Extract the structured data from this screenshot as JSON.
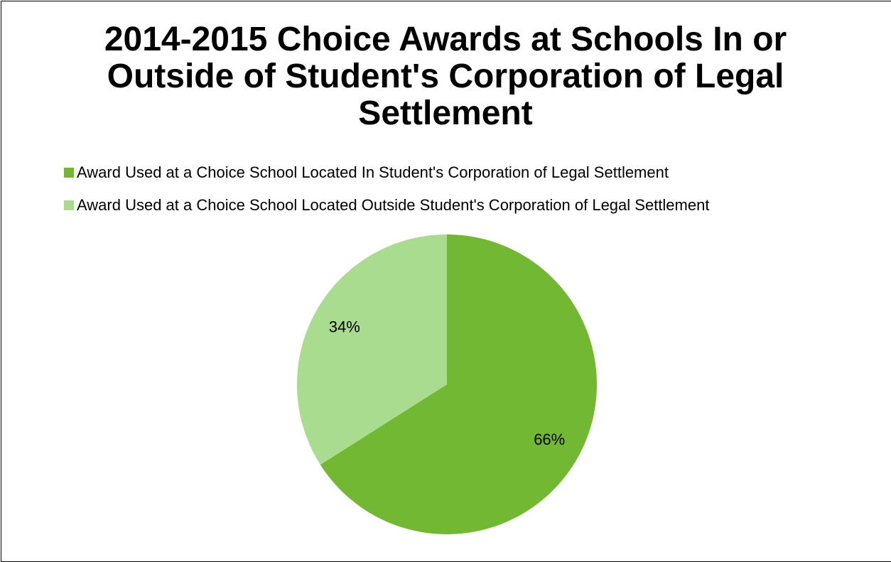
{
  "chart_data": {
    "type": "pie",
    "title": "2014-2015 Choice Awards at Schools In or Outside of Student's Corporation of Legal Settlement",
    "title_lines": [
      "2014-2015 Choice Awards at Schools In or",
      "Outside of Student's Corporation of Legal",
      "Settlement"
    ],
    "legend_position": "top-left",
    "slices": [
      {
        "name": "Award Used at a Choice School Located In Student's Corporation of Legal Settlement",
        "value": 66,
        "label": "66%",
        "color": "#72b833"
      },
      {
        "name": "Award Used at a Choice School Located Outside Student's Corporation of Legal Settlement",
        "value": 34,
        "label": "34%",
        "color": "#a9dc8e"
      }
    ]
  }
}
